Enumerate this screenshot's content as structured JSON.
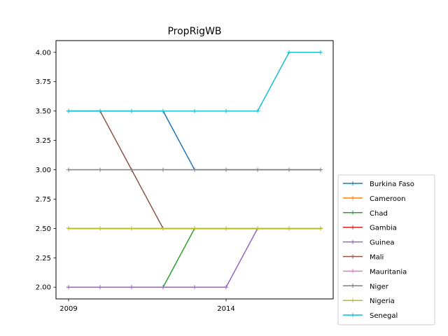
{
  "chart_data": {
    "type": "line",
    "title": "PropRigWB",
    "xlabel": "",
    "ylabel": "",
    "x": [
      2009,
      2010,
      2011,
      2012,
      2013,
      2014,
      2015,
      2016,
      2017
    ],
    "xticks": [
      "2009",
      "2014"
    ],
    "xlim": [
      2008.6,
      2017.4
    ],
    "ylim": [
      1.9,
      4.1
    ],
    "yticks": [
      "2.00",
      "2.25",
      "2.50",
      "2.75",
      "3.00",
      "3.25",
      "3.50",
      "3.75",
      "4.00"
    ],
    "marker": "+",
    "legend_position": "lower-right outside",
    "grid": false,
    "series": [
      {
        "name": "Burkina Faso",
        "color": "#1f77b4",
        "values": [
          3.5,
          3.5,
          3.5,
          3.5,
          3.0,
          3.0,
          3.0,
          3.0,
          3.0
        ]
      },
      {
        "name": "Cameroon",
        "color": "#ff7f0e",
        "values": [
          2.5,
          2.5,
          2.5,
          2.5,
          2.5,
          2.5,
          2.5,
          2.5,
          2.5
        ]
      },
      {
        "name": "Chad",
        "color": "#2ca02c",
        "values": [
          2.0,
          2.0,
          2.0,
          2.0,
          2.5,
          2.5,
          2.5,
          2.5,
          2.5
        ]
      },
      {
        "name": "Gambia",
        "color": "#d62728",
        "values": [
          2.5,
          2.5,
          2.5,
          2.5,
          2.5,
          2.5,
          2.5,
          2.5,
          2.5
        ]
      },
      {
        "name": "Guinea",
        "color": "#9467bd",
        "values": [
          2.0,
          2.0,
          2.0,
          2.0,
          2.0,
          2.0,
          2.5,
          2.5,
          2.5
        ]
      },
      {
        "name": "Mali",
        "color": "#8c564b",
        "values": [
          3.5,
          3.5,
          3.0,
          2.5,
          2.5,
          2.5,
          2.5,
          2.5,
          2.5
        ]
      },
      {
        "name": "Mauritania",
        "color": "#e377c2",
        "values": [
          2.5,
          2.5,
          2.5,
          2.5,
          2.5,
          2.5,
          2.5,
          2.5,
          2.5
        ]
      },
      {
        "name": "Niger",
        "color": "#7f7f7f",
        "values": [
          3.0,
          3.0,
          3.0,
          3.0,
          3.0,
          3.0,
          3.0,
          3.0,
          3.0
        ]
      },
      {
        "name": "Nigeria",
        "color": "#bcbd22",
        "values": [
          2.5,
          2.5,
          2.5,
          2.5,
          2.5,
          2.5,
          2.5,
          2.5,
          2.5
        ]
      },
      {
        "name": "Senegal",
        "color": "#17becf",
        "values": [
          3.5,
          3.5,
          3.5,
          3.5,
          3.5,
          3.5,
          3.5,
          4.0,
          4.0
        ]
      }
    ]
  }
}
